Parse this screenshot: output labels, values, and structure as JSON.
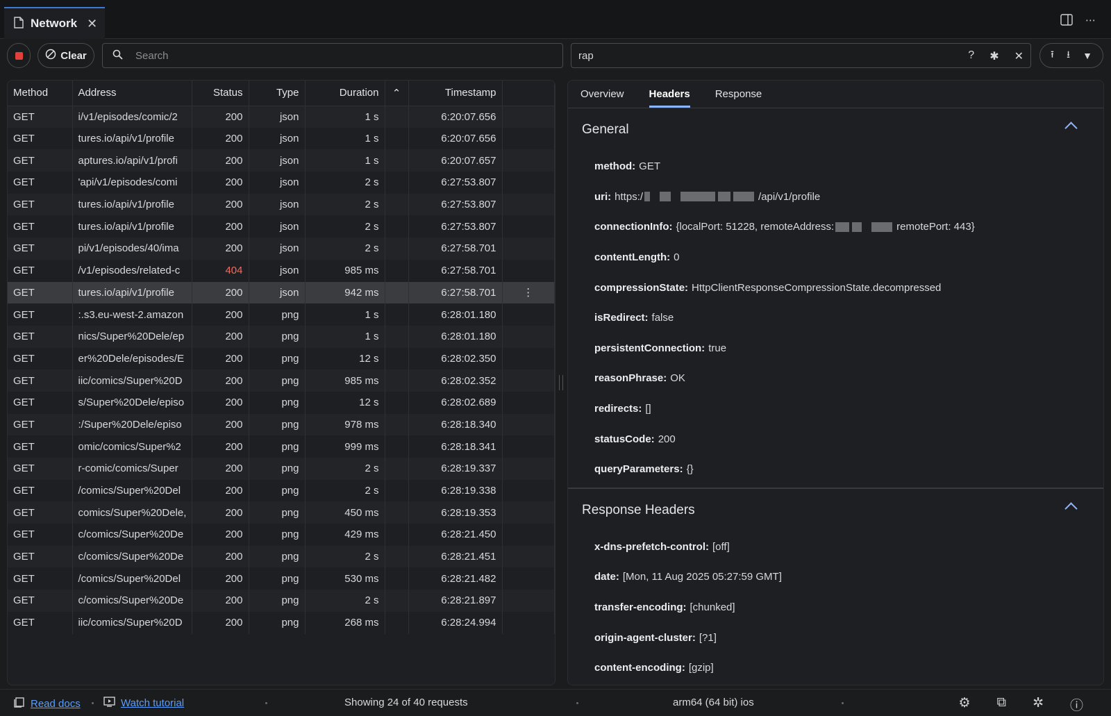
{
  "tab": {
    "title": "Network",
    "close": "✕"
  },
  "toolbar": {
    "clear_label": "Clear",
    "search_placeholder": "Search",
    "filter_value": "rap"
  },
  "table": {
    "headers": [
      "Method",
      "Address",
      "Status",
      "Type",
      "Duration",
      "Timestamp"
    ],
    "rows": [
      {
        "method": "GET",
        "address": "i/v1/episodes/comic/2",
        "status": "200",
        "type": "json",
        "duration": "1 s",
        "timestamp": "6:20:07.656"
      },
      {
        "method": "GET",
        "address": "tures.io/api/v1/profile",
        "status": "200",
        "type": "json",
        "duration": "1 s",
        "timestamp": "6:20:07.656"
      },
      {
        "method": "GET",
        "address": "aptures.io/api/v1/profi",
        "status": "200",
        "type": "json",
        "duration": "1 s",
        "timestamp": "6:20:07.657"
      },
      {
        "method": "GET",
        "address": "'api/v1/episodes/comi",
        "status": "200",
        "type": "json",
        "duration": "2 s",
        "timestamp": "6:27:53.807"
      },
      {
        "method": "GET",
        "address": "tures.io/api/v1/profile",
        "status": "200",
        "type": "json",
        "duration": "2 s",
        "timestamp": "6:27:53.807"
      },
      {
        "method": "GET",
        "address": "tures.io/api/v1/profile",
        "status": "200",
        "type": "json",
        "duration": "2 s",
        "timestamp": "6:27:53.807"
      },
      {
        "method": "GET",
        "address": "pi/v1/episodes/40/ima",
        "status": "200",
        "type": "json",
        "duration": "2 s",
        "timestamp": "6:27:58.701"
      },
      {
        "method": "GET",
        "address": "/v1/episodes/related-c",
        "status": "404",
        "type": "json",
        "duration": "985 ms",
        "timestamp": "6:27:58.701"
      },
      {
        "method": "GET",
        "address": "tures.io/api/v1/profile",
        "status": "200",
        "type": "json",
        "duration": "942 ms",
        "timestamp": "6:27:58.701"
      },
      {
        "method": "GET",
        "address": ":.s3.eu-west-2.amazon",
        "status": "200",
        "type": "png",
        "duration": "1 s",
        "timestamp": "6:28:01.180"
      },
      {
        "method": "GET",
        "address": "nics/Super%20Dele/ep",
        "status": "200",
        "type": "png",
        "duration": "1 s",
        "timestamp": "6:28:01.180"
      },
      {
        "method": "GET",
        "address": "er%20Dele/episodes/E",
        "status": "200",
        "type": "png",
        "duration": "12 s",
        "timestamp": "6:28:02.350"
      },
      {
        "method": "GET",
        "address": "iic/comics/Super%20D",
        "status": "200",
        "type": "png",
        "duration": "985 ms",
        "timestamp": "6:28:02.352"
      },
      {
        "method": "GET",
        "address": "s/Super%20Dele/episo",
        "status": "200",
        "type": "png",
        "duration": "12 s",
        "timestamp": "6:28:02.689"
      },
      {
        "method": "GET",
        "address": ":/Super%20Dele/episo",
        "status": "200",
        "type": "png",
        "duration": "978 ms",
        "timestamp": "6:28:18.340"
      },
      {
        "method": "GET",
        "address": "omic/comics/Super%2",
        "status": "200",
        "type": "png",
        "duration": "999 ms",
        "timestamp": "6:28:18.341"
      },
      {
        "method": "GET",
        "address": "r-comic/comics/Super",
        "status": "200",
        "type": "png",
        "duration": "2 s",
        "timestamp": "6:28:19.337"
      },
      {
        "method": "GET",
        "address": "/comics/Super%20Del",
        "status": "200",
        "type": "png",
        "duration": "2 s",
        "timestamp": "6:28:19.338"
      },
      {
        "method": "GET",
        "address": "comics/Super%20Dele,",
        "status": "200",
        "type": "png",
        "duration": "450 ms",
        "timestamp": "6:28:19.353"
      },
      {
        "method": "GET",
        "address": "c/comics/Super%20De",
        "status": "200",
        "type": "png",
        "duration": "429 ms",
        "timestamp": "6:28:21.450"
      },
      {
        "method": "GET",
        "address": "c/comics/Super%20De",
        "status": "200",
        "type": "png",
        "duration": "2 s",
        "timestamp": "6:28:21.451"
      },
      {
        "method": "GET",
        "address": "/comics/Super%20Del",
        "status": "200",
        "type": "png",
        "duration": "530 ms",
        "timestamp": "6:28:21.482"
      },
      {
        "method": "GET",
        "address": "c/comics/Super%20De",
        "status": "200",
        "type": "png",
        "duration": "2 s",
        "timestamp": "6:28:21.897"
      },
      {
        "method": "GET",
        "address": "iic/comics/Super%20D",
        "status": "200",
        "type": "png",
        "duration": "268 ms",
        "timestamp": "6:28:24.994"
      }
    ],
    "selected_index": 8
  },
  "details": {
    "tabs": [
      "Overview",
      "Headers",
      "Response"
    ],
    "active_tab": "Headers",
    "general_title": "General",
    "general": [
      {
        "key": "method:",
        "value": "GET"
      },
      {
        "key": "uri:",
        "value": "https:/",
        "value_suffix": "/api/v1/profile"
      },
      {
        "key": "connectionInfo:",
        "value": "{localPort: 51228, remoteAddress:",
        "value_suffix": "remotePort: 443}"
      },
      {
        "key": "contentLength:",
        "value": "0"
      },
      {
        "key": "compressionState:",
        "value": "HttpClientResponseCompressionState.decompressed"
      },
      {
        "key": "isRedirect:",
        "value": "false"
      },
      {
        "key": "persistentConnection:",
        "value": "true"
      },
      {
        "key": "reasonPhrase:",
        "value": "OK"
      },
      {
        "key": "redirects:",
        "value": "[]"
      },
      {
        "key": "statusCode:",
        "value": "200"
      },
      {
        "key": "queryParameters:",
        "value": "{}"
      }
    ],
    "response_title": "Response Headers",
    "response_headers": [
      {
        "key": "x-dns-prefetch-control:",
        "value": "[off]"
      },
      {
        "key": "date:",
        "value": "[Mon, 11 Aug 2025 05:27:59 GMT]"
      },
      {
        "key": "transfer-encoding:",
        "value": "[chunked]"
      },
      {
        "key": "origin-agent-cluster:",
        "value": "[?1]"
      },
      {
        "key": "content-encoding:",
        "value": "[gzip]"
      }
    ]
  },
  "statusbar": {
    "read_docs": "Read docs",
    "watch_tutorial": "Watch tutorial",
    "showing": "Showing 24 of 40 requests",
    "arch": "arm64 (64 bit) ios"
  },
  "icons": [
    "document-icon",
    "close-icon",
    "split-view-icon",
    "more-icon",
    "record-icon",
    "clear-icon",
    "search-icon",
    "help-icon",
    "regex-icon",
    "upload-icon",
    "download-icon",
    "chevron-down-icon",
    "docs-icon",
    "tutorial-icon",
    "settings-icon",
    "extension-icon",
    "bug-icon",
    "help-circle-icon"
  ]
}
